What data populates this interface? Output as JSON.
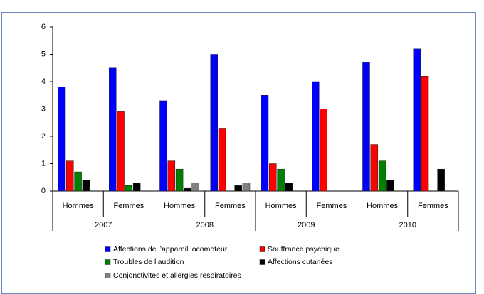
{
  "chart_data": {
    "type": "bar",
    "categories": [
      "Hommes",
      "Femmes",
      "Hommes",
      "Femmes",
      "Hommes",
      "Femmes",
      "Hommes",
      "Femmes"
    ],
    "groups": [
      "2007",
      "2008",
      "2009",
      "2010"
    ],
    "series": [
      {
        "name": "Affections de l’appareil locomoteur",
        "color": "#0000ff",
        "values": [
          3.8,
          4.5,
          3.3,
          5.0,
          3.5,
          4.0,
          4.7,
          5.2
        ]
      },
      {
        "name": "Souffrance psychique",
        "color": "#ff0000",
        "values": [
          1.1,
          2.9,
          1.1,
          2.3,
          1.0,
          3.0,
          1.7,
          4.2
        ]
      },
      {
        "name": "Troubles de l’audition",
        "color": "#008000",
        "values": [
          0.7,
          0.2,
          0.8,
          null,
          0.8,
          null,
          1.1,
          null
        ]
      },
      {
        "name": "Affections cutanées",
        "color": "#000000",
        "values": [
          0.4,
          0.3,
          0.1,
          0.2,
          0.3,
          null,
          0.4,
          0.8
        ]
      },
      {
        "name": "Conjonctivites et allergies respiratoires",
        "color": "#808080",
        "values": [
          null,
          null,
          0.3,
          0.3,
          null,
          null,
          null,
          null
        ]
      }
    ],
    "ylim": [
      0,
      6
    ],
    "yticks": [
      0,
      1,
      2,
      3,
      4,
      5,
      6
    ],
    "grid": false,
    "legend": "bottom"
  }
}
